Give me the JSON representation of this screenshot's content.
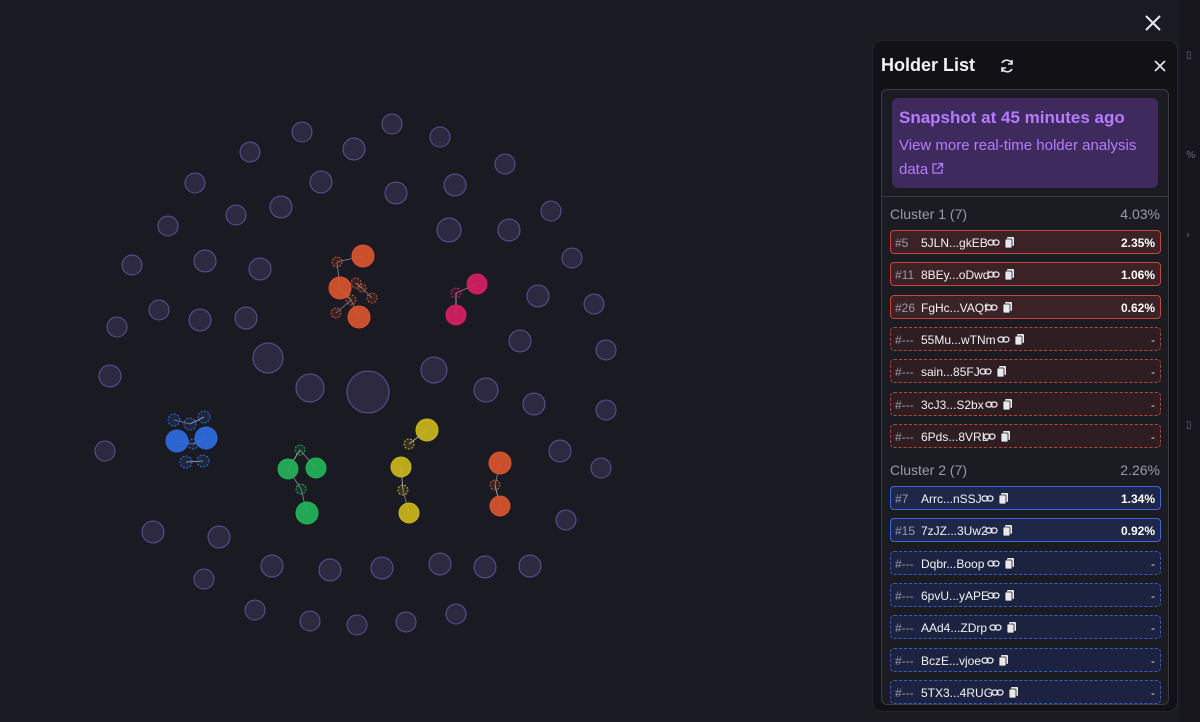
{
  "holder_list": {
    "title": "Holder List",
    "snapshot_title": "Snapshot at 45 minutes ago",
    "snapshot_link": "View more real-time holder analysis data",
    "clusters": [
      {
        "name": "Cluster 1 (7)",
        "percent": "4.03%",
        "color": "#c8453a",
        "rows": [
          {
            "rank": "#5",
            "address": "5JLN...gkEB",
            "percent": "2.35%"
          },
          {
            "rank": "#11",
            "address": "8BEy...oDwd",
            "percent": "1.06%"
          },
          {
            "rank": "#26",
            "address": "FgHc...VAQf",
            "percent": "0.62%"
          },
          {
            "rank": "#---",
            "address": "55Mu...wTNm",
            "percent": "-"
          },
          {
            "rank": "#---",
            "address": "sain...85FJ",
            "percent": "-"
          },
          {
            "rank": "#---",
            "address": "3cJ3...S2bx",
            "percent": "-"
          },
          {
            "rank": "#---",
            "address": "6Pds...8VRL",
            "percent": "-"
          }
        ]
      },
      {
        "name": "Cluster 2 (7)",
        "percent": "2.26%",
        "color": "#3d67e0",
        "rows": [
          {
            "rank": "#7",
            "address": "Arrc...nSSJ",
            "percent": "1.34%"
          },
          {
            "rank": "#15",
            "address": "7zJZ...3Uw2",
            "percent": "0.92%"
          },
          {
            "rank": "#---",
            "address": "Dqbr...Boop",
            "percent": "-"
          },
          {
            "rank": "#---",
            "address": "6pvU...yAPE",
            "percent": "-"
          },
          {
            "rank": "#---",
            "address": "AAd4...ZDrp",
            "percent": "-"
          },
          {
            "rank": "#---",
            "address": "BczE...vjoe",
            "percent": "-"
          },
          {
            "rank": "#---",
            "address": "5TX3...4RUG",
            "percent": "-"
          }
        ]
      }
    ]
  },
  "bubble_map": {
    "neutral_color": "#6d5fb0",
    "cluster_colors": [
      "#d9542f",
      "#2f6be0",
      "#d61f62",
      "#22b35a",
      "#cbb51c",
      "#d9542f"
    ]
  },
  "icons": {
    "close": "close-icon",
    "refresh": "refresh-icon",
    "external_link": "external-link-icon",
    "link": "link-icon",
    "copy": "copy-icon"
  }
}
